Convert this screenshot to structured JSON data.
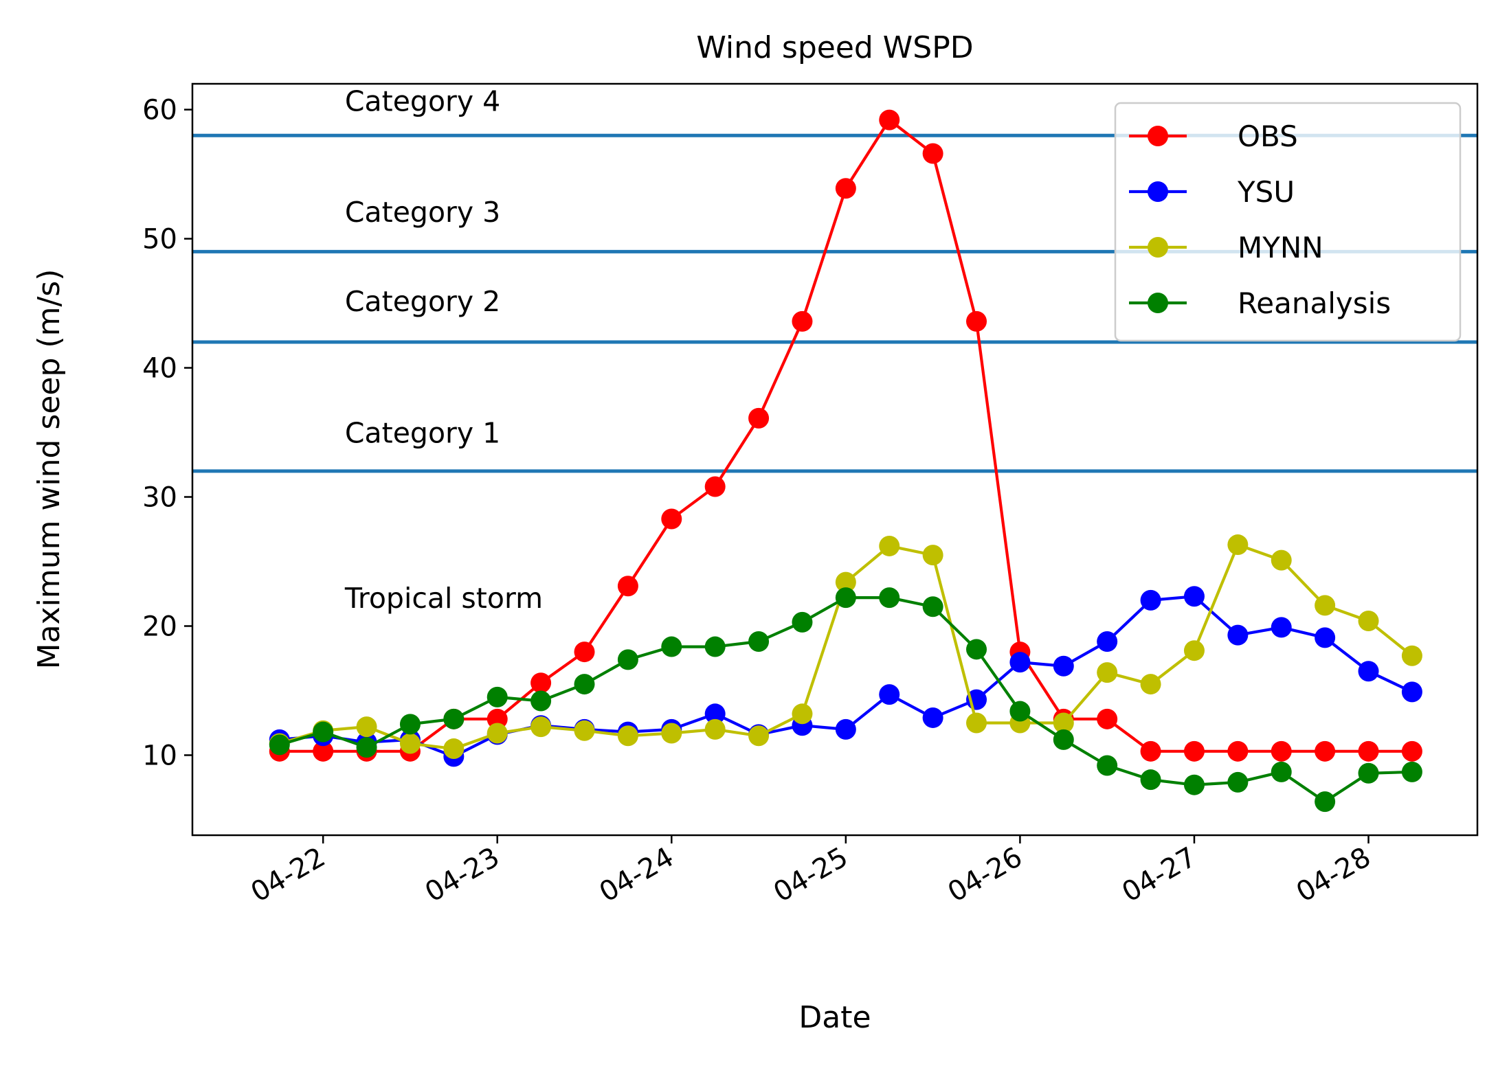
{
  "chart_data": {
    "type": "line",
    "title": "Wind speed WSPD",
    "xlabel": "Date",
    "ylabel": "Maximum wind seep (m/s)",
    "x_ticks": [
      "04-22",
      "04-23",
      "04-24",
      "04-25",
      "04-26",
      "04-27",
      "04-28"
    ],
    "x_range": [
      "04-21 06:00",
      "04-28 15:00"
    ],
    "y_ticks": [
      10,
      20,
      30,
      40,
      50,
      60
    ],
    "ylim": [
      3.8,
      62
    ],
    "grid": false,
    "legend_position": "top-right",
    "x": [
      "04-21 18:00",
      "04-22 00:00",
      "04-22 06:00",
      "04-22 12:00",
      "04-22 18:00",
      "04-23 00:00",
      "04-23 06:00",
      "04-23 12:00",
      "04-23 18:00",
      "04-24 00:00",
      "04-24 06:00",
      "04-24 12:00",
      "04-24 18:00",
      "04-25 00:00",
      "04-25 06:00",
      "04-25 12:00",
      "04-25 18:00",
      "04-26 00:00",
      "04-26 06:00",
      "04-26 12:00",
      "04-26 18:00",
      "04-27 00:00",
      "04-27 06:00",
      "04-27 12:00",
      "04-27 18:00",
      "04-28 00:00",
      "04-28 06:00"
    ],
    "series": [
      {
        "name": "OBS",
        "color": "#ff0000",
        "values": [
          10.3,
          10.3,
          10.3,
          10.3,
          12.8,
          12.8,
          15.6,
          18.0,
          23.1,
          28.3,
          30.8,
          36.1,
          43.6,
          53.9,
          59.2,
          56.6,
          43.6,
          18.0,
          12.8,
          12.8,
          10.3,
          10.3,
          10.3,
          10.3,
          10.3,
          10.3,
          10.3
        ]
      },
      {
        "name": "YSU",
        "color": "#0000ff",
        "values": [
          11.2,
          11.5,
          11.0,
          11.2,
          9.9,
          11.6,
          12.3,
          12.0,
          11.8,
          12.0,
          13.2,
          11.6,
          12.3,
          12.0,
          14.7,
          12.9,
          14.3,
          17.2,
          16.9,
          18.8,
          22.0,
          22.3,
          19.3,
          19.9,
          19.1,
          16.5,
          14.9
        ]
      },
      {
        "name": "MYNN",
        "color": "#bfbf00",
        "values": [
          10.9,
          11.9,
          12.2,
          10.9,
          10.5,
          11.7,
          12.2,
          11.9,
          11.5,
          11.7,
          12.0,
          11.5,
          13.2,
          23.4,
          26.2,
          25.5,
          12.5,
          12.5,
          12.5,
          16.4,
          15.5,
          18.1,
          26.3,
          25.1,
          21.6,
          20.4,
          17.7
        ]
      },
      {
        "name": "Reanalysis",
        "color": "#008000",
        "values": [
          10.8,
          11.8,
          10.6,
          12.4,
          12.8,
          14.5,
          14.2,
          15.5,
          17.4,
          18.4,
          18.4,
          18.8,
          20.3,
          22.2,
          22.2,
          21.5,
          18.2,
          13.4,
          11.2,
          9.2,
          8.1,
          7.7,
          7.9,
          8.7,
          6.4,
          8.6,
          8.7
        ]
      }
    ],
    "reference_lines": {
      "color": "#1f77b4",
      "values": [
        32,
        42,
        49,
        58
      ]
    },
    "annotations": [
      {
        "text": "Tropical storm",
        "x": "04-22 03:00",
        "y": 21.4
      },
      {
        "text": "Category 1",
        "x": "04-22 03:00",
        "y": 34.2
      },
      {
        "text": "Category 2",
        "x": "04-22 03:00",
        "y": 44.4
      },
      {
        "text": "Category 3",
        "x": "04-22 03:00",
        "y": 51.3
      },
      {
        "text": "Category 4",
        "x": "04-22 03:00",
        "y": 59.9
      }
    ]
  }
}
